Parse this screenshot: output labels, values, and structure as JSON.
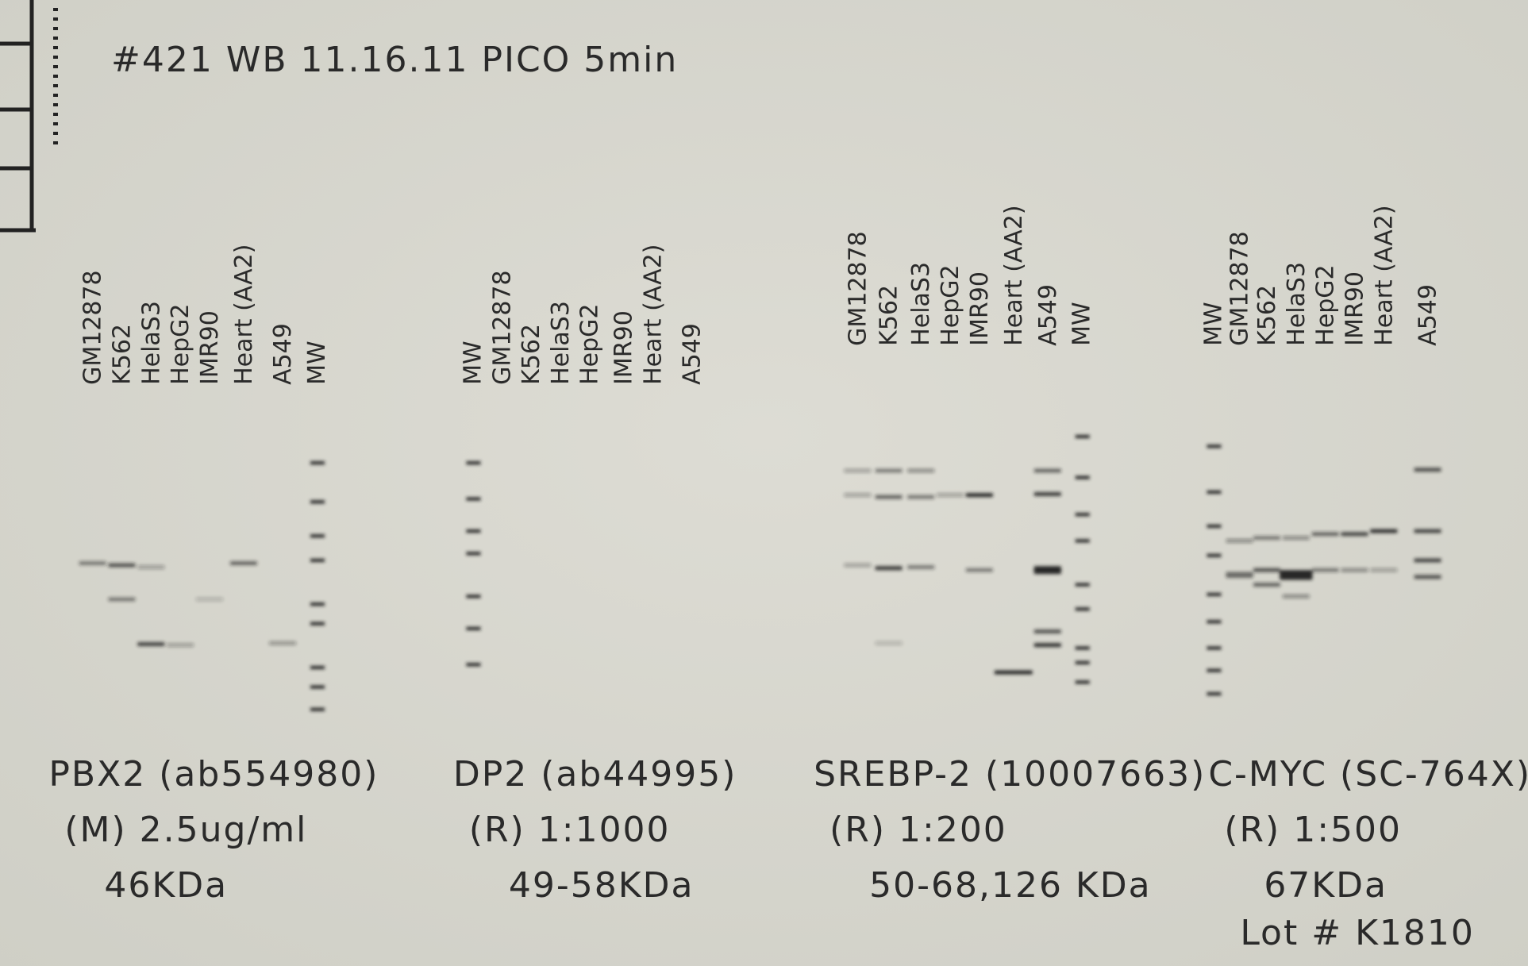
{
  "title": "#421 WB 11.16.11 PICO 5min",
  "blots": [
    {
      "lanes": [
        "GM12878",
        "K562",
        "HelaS3",
        "HepG2",
        "IMR90",
        "Heart (AA2)",
        "A549",
        "MW"
      ],
      "antibody": "PBX2 (ab554980)",
      "dilution": "(M) 2.5ug/ml",
      "size": "46KDa"
    },
    {
      "lanes": [
        "MW",
        "GM12878",
        "K562",
        "HelaS3",
        "HepG2",
        "IMR90",
        "Heart (AA2)",
        "A549"
      ],
      "antibody": "DP2 (ab44995)",
      "dilution": "(R) 1:1000",
      "size": "49-58KDa"
    },
    {
      "lanes": [
        "GM12878",
        "K562",
        "HelaS3",
        "HepG2",
        "IMR90",
        "Heart (AA2)",
        "A549",
        "MW"
      ],
      "antibody": "SREBP-2 (10007663)",
      "dilution": "(R) 1:200",
      "size": "50-68,126 KDa"
    },
    {
      "lanes": [
        "MW",
        "GM12878",
        "K562",
        "HelaS3",
        "HepG2",
        "IMR90",
        "Heart (AA2)",
        "A549"
      ],
      "antibody": "C-MYC (SC-764X)",
      "dilution": "(R) 1:500",
      "size": "67KDa",
      "lot": "Lot # K1810"
    }
  ]
}
